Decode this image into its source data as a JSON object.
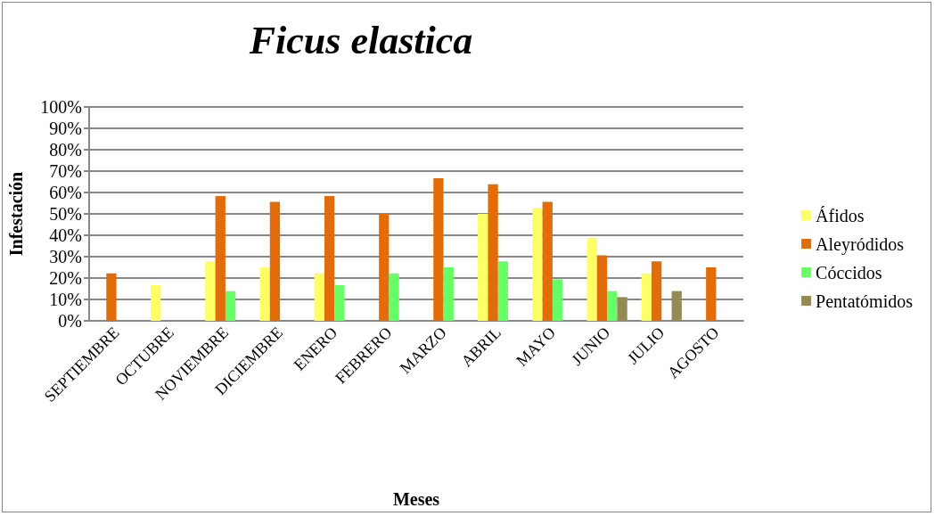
{
  "chart_data": {
    "type": "bar",
    "title": "Ficus elastica",
    "xlabel": "Meses",
    "ylabel": "Infestación",
    "categories": [
      "SEPTIEMBRE",
      "OCTUBRE",
      "NOVIEMBRE",
      "DICIEMBRE",
      "ENERO",
      "FEBRERO",
      "MARZO",
      "ABRIL",
      "MAYO",
      "JUNIO",
      "JULIO",
      "AGOSTO"
    ],
    "series": [
      {
        "name": "Áfidos",
        "color": "#ffff66",
        "values": [
          null,
          16.7,
          27.8,
          25,
          22.2,
          null,
          null,
          50,
          52.8,
          38.9,
          22.2,
          null
        ]
      },
      {
        "name": "Aleyródidos",
        "color": "#e36c0a",
        "values": [
          22.2,
          null,
          58.3,
          55.6,
          58.3,
          50,
          66.7,
          63.9,
          55.6,
          30.6,
          27.8,
          25
        ]
      },
      {
        "name": "Cóccidos",
        "color": "#66ff66",
        "values": [
          null,
          null,
          13.9,
          null,
          16.7,
          22.2,
          25,
          27.8,
          19.4,
          13.9,
          null,
          null
        ]
      },
      {
        "name": "Pentatómidos",
        "color": "#948a54",
        "values": [
          null,
          null,
          null,
          null,
          null,
          null,
          null,
          null,
          null,
          11.1,
          13.9,
          null
        ]
      }
    ],
    "ylim": [
      0,
      100
    ],
    "yticks": [
      {
        "value": 0,
        "label": "0%"
      },
      {
        "value": 10,
        "label": "10%"
      },
      {
        "value": 20,
        "label": "20%"
      },
      {
        "value": 30,
        "label": "30%"
      },
      {
        "value": 40,
        "label": "40%"
      },
      {
        "value": 50,
        "label": "50%"
      },
      {
        "value": 60,
        "label": "60%"
      },
      {
        "value": 70,
        "label": "70%"
      },
      {
        "value": 80,
        "label": "80%"
      },
      {
        "value": 90,
        "label": "90%"
      },
      {
        "value": 100,
        "label": "100%"
      }
    ],
    "grid": "y",
    "legend": "right"
  }
}
